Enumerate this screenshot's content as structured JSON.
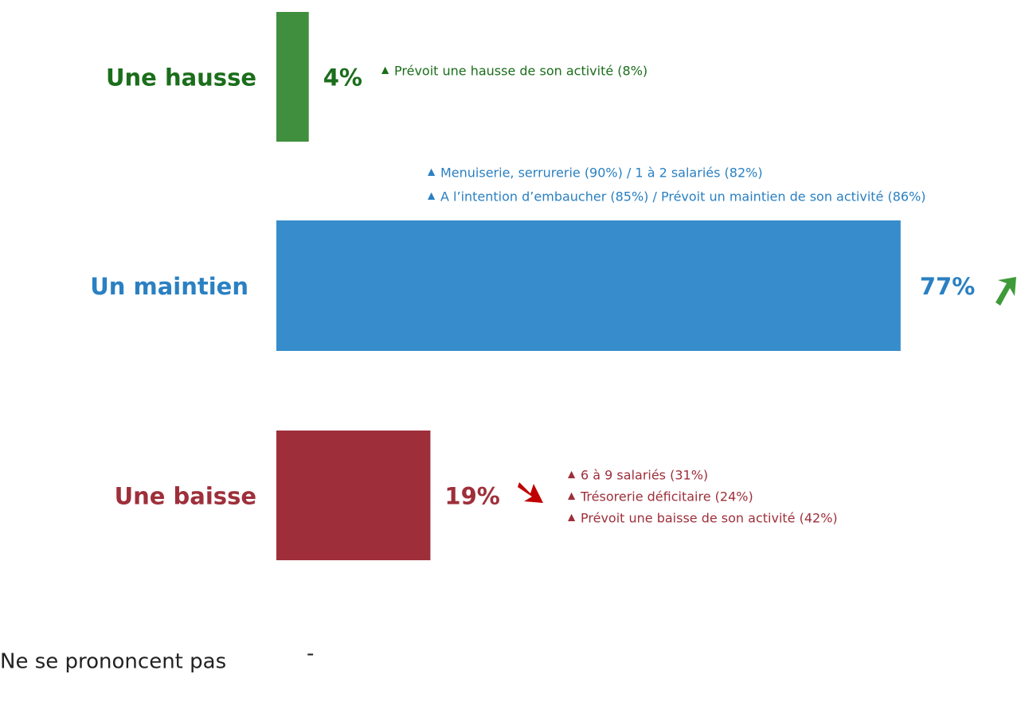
{
  "chart_data": {
    "type": "barh",
    "categories": [
      "Une hausse",
      "Un maintien",
      "Une baisse"
    ],
    "values": [
      4,
      77,
      19
    ],
    "value_labels": [
      "4%",
      "77%",
      "19%"
    ],
    "colors": [
      "#3f8f3f",
      "#378dcc",
      "#9e2f3a"
    ],
    "label_colors": [
      "#1b6e1b",
      "#2a80c2",
      "#9e2f3a"
    ],
    "xlim": [
      0,
      100
    ],
    "annotations": [
      [
        "Prévoit une hausse de son activité (8%)"
      ],
      [
        "Menuiserie, serrurerie (90%) / 1 à 2 salariés (82%)",
        "A l’intention d’embaucher (85%) / Prévoit un maintien de son activité (86%)"
      ],
      [
        "6 à 9 salariés (31%)",
        "Trésorerie déficitaire (24%)",
        "Prévoit une baisse de son activité (42%)"
      ]
    ],
    "no_opinion": {
      "label": "Ne se prononcent pas",
      "value_label": "-"
    }
  }
}
